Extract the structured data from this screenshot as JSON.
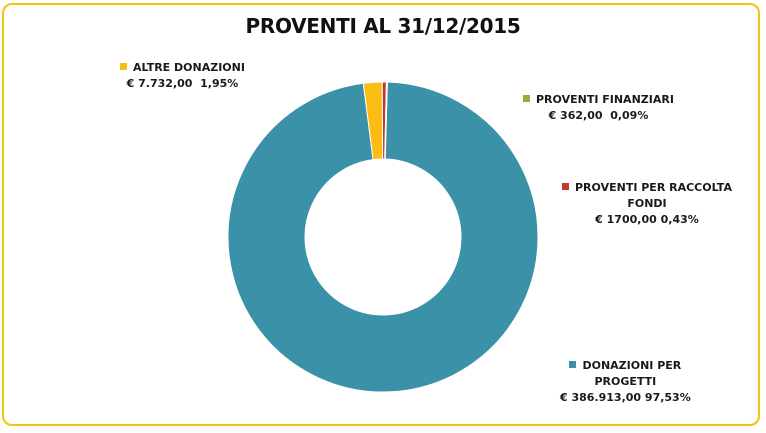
{
  "chart_data": {
    "type": "pie",
    "variant": "donut",
    "title": "PROVENTI AL 31/12/2015",
    "slices": [
      {
        "name": "DONAZIONI PER PROGETTI",
        "name_lines": [
          "DONAZIONI PER",
          "PROGETTI"
        ],
        "value": 386913.0,
        "value_label": "€ 386.913,00",
        "percent": 97.53,
        "percent_label": "97,53%",
        "color": "#3a91a8"
      },
      {
        "name": "ALTRE DONAZIONI",
        "name_lines": [
          "ALTRE DONAZIONI"
        ],
        "value": 7732.0,
        "value_label": "€ 7.732,00",
        "percent": 1.95,
        "percent_label": "1,95%",
        "color": "#fbbd13"
      },
      {
        "name": "PROVENTI PER RACCOLTA FONDI",
        "name_lines": [
          "PROVENTI PER RACCOLTA",
          "FONDI"
        ],
        "value": 1700.0,
        "value_label": "€ 1700,00",
        "percent": 0.43,
        "percent_label": "0,43%",
        "color": "#c0392b"
      },
      {
        "name": "PROVENTI FINANZIARI",
        "name_lines": [
          "PROVENTI FINANZIARI"
        ],
        "value": 362.0,
        "value_label": "€ 362,00",
        "percent": 0.09,
        "percent_label": "0,09%",
        "color": "#8db33a"
      }
    ],
    "legend": "data labels beside the ring"
  }
}
